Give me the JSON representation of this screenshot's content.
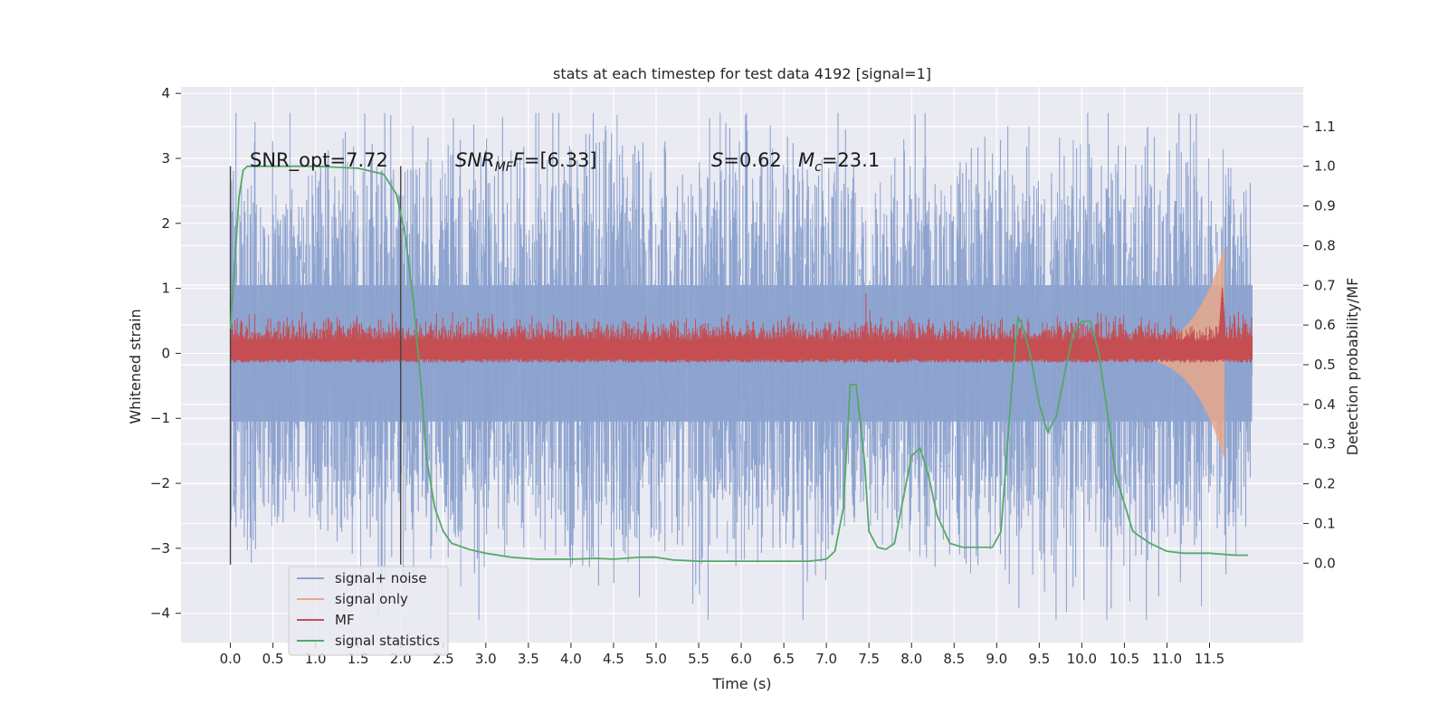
{
  "chart_data": {
    "type": "line",
    "title": "stats at each timestep for test data 4192 [signal=1]",
    "xlabel": "Time (s)",
    "ylabel_left": "Whitened strain",
    "ylabel_right": "Detection probability/MF",
    "xlim": [
      -0.58,
      12.6
    ],
    "ylim_left": [
      -4.45,
      4.1
    ],
    "ylim_right": [
      -0.2,
      1.2
    ],
    "x_ticks": [
      0.0,
      0.5,
      1.0,
      1.5,
      2.0,
      2.5,
      3.0,
      3.5,
      4.0,
      4.5,
      5.0,
      5.5,
      6.0,
      6.5,
      7.0,
      7.5,
      8.0,
      8.5,
      9.0,
      9.5,
      10.0,
      10.5,
      11.0,
      11.5
    ],
    "x_tick_labels": [
      "0.0",
      "0.5",
      "1.0",
      "1.5",
      "2.0",
      "2.5",
      "3.0",
      "3.5",
      "4.0",
      "4.5",
      "5.0",
      "5.5",
      "6.0",
      "6.5",
      "7.0",
      "7.5",
      "8.0",
      "8.5",
      "9.0",
      "9.5",
      "10.0",
      "10.5",
      "11.0",
      "11.5"
    ],
    "y_left_ticks": [
      -4,
      -3,
      -2,
      -1,
      0,
      1,
      2,
      3,
      4
    ],
    "y_left_tick_labels": [
      "−4",
      "−3",
      "−2",
      "−1",
      "0",
      "1",
      "2",
      "3",
      "4"
    ],
    "y_right_ticks": [
      0.0,
      0.1,
      0.2,
      0.3,
      0.4,
      0.5,
      0.6,
      0.7,
      0.8,
      0.9,
      1.0,
      1.1
    ],
    "y_right_tick_labels": [
      "0.0",
      "0.1",
      "0.2",
      "0.3",
      "0.4",
      "0.5",
      "0.6",
      "0.7",
      "0.8",
      "0.9",
      "1.0",
      "1.1"
    ],
    "grid": true,
    "legend_position": "lower-left",
    "time_range": [
      0.0,
      12.0
    ],
    "window_markers": [
      0.0,
      2.0
    ],
    "annotations": {
      "snr_opt": "SNR_opt=7.72",
      "snr_mf_name": "SNR",
      "snr_mf_sub": "MF",
      "snr_mf_value": "=[6.33]",
      "s_name": "S",
      "s_value": "=0.62",
      "mc_name": "M",
      "mc_sub": "c",
      "mc_value": "=23.1"
    },
    "series": [
      {
        "name": "signal+ noise",
        "axis": "left",
        "color": "#8da3cf",
        "description": "whitened strain noise",
        "envelope_max": 3.7,
        "envelope_min": -4.1
      },
      {
        "name": "signal only",
        "axis": "left",
        "color": "#e8a88a",
        "chirp_start": 9.5,
        "chirp_peak_time": 11.65,
        "chirp_peak_amplitude": 1.5
      },
      {
        "name": "MF",
        "axis": "right",
        "color": "#c44e52",
        "baseline": 0.55,
        "peak_time": 11.65,
        "peak_value": 0.7
      },
      {
        "name": "signal statistics",
        "axis": "right",
        "color": "#55a868",
        "x": [
          0.0,
          0.05,
          0.1,
          0.15,
          0.2,
          0.3,
          0.5,
          1.0,
          1.5,
          1.8,
          1.95,
          2.05,
          2.15,
          2.25,
          2.3,
          2.4,
          2.5,
          2.6,
          2.8,
          3.0,
          3.3,
          3.6,
          4.0,
          4.3,
          4.5,
          4.8,
          5.0,
          5.2,
          5.5,
          6.0,
          6.5,
          6.8,
          7.0,
          7.1,
          7.2,
          7.28,
          7.35,
          7.45,
          7.5,
          7.6,
          7.7,
          7.8,
          7.9,
          8.0,
          8.1,
          8.2,
          8.3,
          8.45,
          8.6,
          8.8,
          8.95,
          9.05,
          9.12,
          9.18,
          9.25,
          9.3,
          9.4,
          9.5,
          9.6,
          9.7,
          9.8,
          9.9,
          10.0,
          10.1,
          10.2,
          10.3,
          10.4,
          10.6,
          10.8,
          11.0,
          11.2,
          11.5,
          11.8,
          11.95
        ],
        "y": [
          0.59,
          0.75,
          0.92,
          0.99,
          1.0,
          1.0,
          1.0,
          1.0,
          0.995,
          0.98,
          0.93,
          0.83,
          0.66,
          0.42,
          0.27,
          0.14,
          0.08,
          0.05,
          0.035,
          0.025,
          0.015,
          0.01,
          0.01,
          0.012,
          0.01,
          0.015,
          0.015,
          0.008,
          0.005,
          0.005,
          0.005,
          0.005,
          0.01,
          0.03,
          0.14,
          0.45,
          0.45,
          0.25,
          0.08,
          0.04,
          0.035,
          0.05,
          0.16,
          0.27,
          0.29,
          0.22,
          0.12,
          0.05,
          0.04,
          0.04,
          0.04,
          0.08,
          0.28,
          0.45,
          0.62,
          0.6,
          0.52,
          0.4,
          0.33,
          0.37,
          0.48,
          0.58,
          0.61,
          0.61,
          0.53,
          0.38,
          0.22,
          0.08,
          0.05,
          0.03,
          0.025,
          0.025,
          0.02,
          0.02
        ]
      }
    ]
  }
}
